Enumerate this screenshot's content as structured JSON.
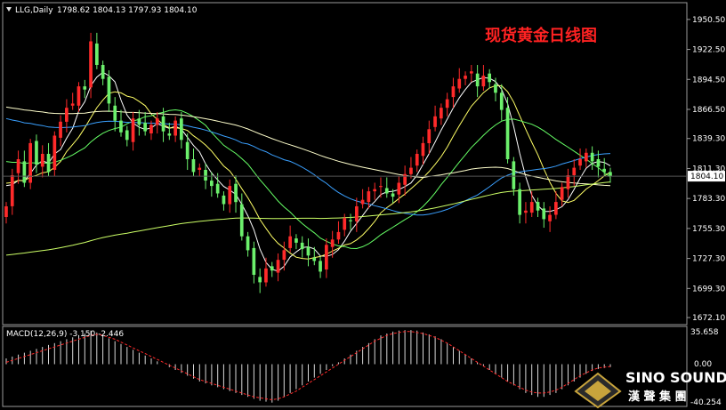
{
  "header": {
    "symbol": "LLG,Daily",
    "ohlc": "1798.62 1804.13 1797.93 1804.10"
  },
  "chart_title": "现货黄金日线图",
  "price_scale": {
    "ticks": [
      "1950.50",
      "1922.50",
      "1894.50",
      "1866.50",
      "1839.30",
      "1811.30",
      "1783.30",
      "1755.30",
      "1727.30",
      "1699.30",
      "1672.10"
    ],
    "current_price": "1804.10",
    "ylim": [
      1668,
      1962
    ]
  },
  "macd": {
    "label": "MACD(12,26,9) -3.150 -2.446",
    "ticks": [
      "35.658",
      "0.00",
      "-40.254"
    ]
  },
  "brand": {
    "name": "SINO SOUND",
    "cn": "漢 聲 集 團"
  },
  "colors": {
    "background": "#000000",
    "bull": "#ff2a2a",
    "bear": "#6cf06c",
    "ma5": "#ffffff",
    "ma10": "#ffff66",
    "ma20": "#66ff66",
    "ma60": "#3aa0ff",
    "ma120": "#ffffcc",
    "ma250": "#ccff66",
    "title": "#ff2222",
    "logo_gold": "#c8a43c"
  },
  "chart_data": {
    "type": "line",
    "title": "现货黄金日线图",
    "ylim": [
      1668,
      1962
    ],
    "close": [
      1776,
      1805,
      1820,
      1798,
      1835,
      1815,
      1825,
      1808,
      1842,
      1855,
      1868,
      1872,
      1888,
      1885,
      1930,
      1908,
      1895,
      1872,
      1856,
      1845,
      1838,
      1858,
      1852,
      1846,
      1852,
      1858,
      1846,
      1842,
      1856,
      1838,
      1820,
      1808,
      1812,
      1800,
      1795,
      1788,
      1778,
      1795,
      1780,
      1748,
      1735,
      1712,
      1705,
      1718,
      1716,
      1726,
      1735,
      1748,
      1742,
      1736,
      1730,
      1725,
      1715,
      1740,
      1745,
      1752,
      1765,
      1762,
      1776,
      1782,
      1790,
      1792,
      1795,
      1788,
      1785,
      1798,
      1806,
      1812,
      1825,
      1835,
      1848,
      1860,
      1868,
      1876,
      1888,
      1895,
      1898,
      1902,
      1888,
      1898,
      1892,
      1882,
      1866,
      1820,
      1792,
      1768,
      1772,
      1780,
      1772,
      1764,
      1768,
      1780,
      1794,
      1805,
      1812,
      1820,
      1826,
      1818,
      1813,
      1808,
      1804
    ],
    "macd_hist": [
      6,
      8,
      10,
      12,
      14,
      16,
      18,
      20,
      22,
      24,
      26,
      28,
      30,
      32,
      35,
      33,
      30,
      27,
      24,
      21,
      18,
      15,
      12,
      9,
      6,
      3,
      0,
      -3,
      -6,
      -9,
      -12,
      -15,
      -18,
      -20,
      -22,
      -24,
      -26,
      -28,
      -30,
      -32,
      -34,
      -36,
      -38,
      -39,
      -40,
      -38,
      -34,
      -30,
      -26,
      -22,
      -18,
      -14,
      -10,
      -6,
      -2,
      2,
      6,
      10,
      14,
      18,
      22,
      26,
      30,
      32,
      34,
      35,
      35.5,
      35.6,
      35,
      33,
      31,
      29,
      26,
      22,
      18,
      14,
      10,
      6,
      2,
      -2,
      -6,
      -10,
      -14,
      -18,
      -22,
      -26,
      -30,
      -32,
      -34,
      -34,
      -32,
      -30,
      -26,
      -22,
      -18,
      -14,
      -10,
      -7,
      -5,
      -4,
      -3
    ],
    "macd_signal": [
      2,
      4,
      6,
      8,
      10,
      12,
      14,
      16,
      18,
      20,
      22,
      24,
      26,
      28,
      30,
      31,
      30,
      28,
      26,
      23,
      20,
      17,
      14,
      11,
      8,
      5,
      2,
      -1,
      -4,
      -7,
      -10,
      -13,
      -16,
      -18,
      -20,
      -22,
      -24,
      -26,
      -28,
      -30,
      -32,
      -34,
      -35,
      -36,
      -37,
      -36,
      -34,
      -31,
      -28,
      -24,
      -20,
      -16,
      -12,
      -8,
      -4,
      0,
      4,
      8,
      12,
      16,
      20,
      24,
      27,
      30,
      32,
      33,
      34,
      34,
      33,
      32,
      30,
      28,
      25,
      22,
      18,
      14,
      10,
      6,
      2,
      -2,
      -6,
      -10,
      -14,
      -18,
      -21,
      -24,
      -27,
      -29,
      -30,
      -30,
      -29,
      -27,
      -24,
      -20,
      -16,
      -12,
      -9,
      -6,
      -4,
      -3,
      -2.4
    ],
    "macd_range": [
      -40.254,
      35.658
    ]
  }
}
